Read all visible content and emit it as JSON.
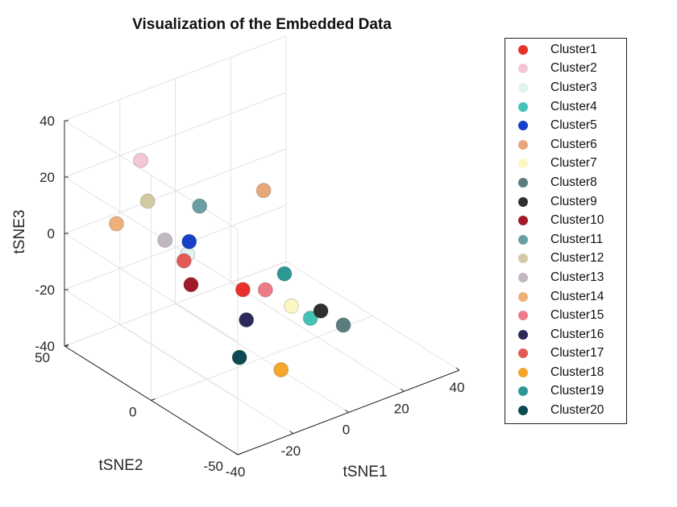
{
  "chart_data": {
    "type": "scatter3d",
    "title": "Visualization of the Embedded Data",
    "xlabel": "tSNE1",
    "ylabel": "tSNE2",
    "zlabel": "tSNE3",
    "xlim": [
      -40,
      40
    ],
    "ylim": [
      -50,
      50
    ],
    "zlim": [
      -40,
      40
    ],
    "xticks": [
      "-40",
      "-20",
      "0",
      "20",
      "40"
    ],
    "yticks": [
      "-50",
      "0",
      "50"
    ],
    "zticks": [
      "-40",
      "-20",
      "0",
      "20",
      "40"
    ],
    "grid": true,
    "legend_position": "outside-right",
    "series": [
      {
        "name": "Cluster1",
        "color": "#e8312c",
        "x": -10,
        "y": -5,
        "z": -10
      },
      {
        "name": "Cluster2",
        "color": "#f2c7d3",
        "x": -25,
        "y": 30,
        "z": 28
      },
      {
        "name": "Cluster3",
        "color": "#dff3ef",
        "x": -30,
        "y": -5,
        "z": 10
      },
      {
        "name": "Cluster4",
        "color": "#45c2b8",
        "x": 5,
        "y": -20,
        "z": -20
      },
      {
        "name": "Cluster5",
        "color": "#1540c7",
        "x": -20,
        "y": 10,
        "z": 5
      },
      {
        "name": "Cluster6",
        "color": "#e6a87a",
        "x": 10,
        "y": 15,
        "z": 10
      },
      {
        "name": "Cluster7",
        "color": "#fbf6c4",
        "x": -5,
        "y": -25,
        "z": -10
      },
      {
        "name": "Cluster8",
        "color": "#5a7c7f",
        "x": 20,
        "y": -15,
        "z": -30
      },
      {
        "name": "Cluster9",
        "color": "#2f2f2f",
        "x": 15,
        "y": -10,
        "z": -25
      },
      {
        "name": "Cluster10",
        "color": "#a01a28",
        "x": -35,
        "y": -15,
        "z": 5
      },
      {
        "name": "Cluster11",
        "color": "#6a9ea3",
        "x": -10,
        "y": 20,
        "z": 10
      },
      {
        "name": "Cluster12",
        "color": "#d3c9a2",
        "x": -35,
        "y": 10,
        "z": 25
      },
      {
        "name": "Cluster13",
        "color": "#c1b8c1",
        "x": -35,
        "y": 0,
        "z": 15
      },
      {
        "name": "Cluster14",
        "color": "#eeb07a",
        "x": -40,
        "y": 20,
        "z": 15
      },
      {
        "name": "Cluster15",
        "color": "#ee7a88",
        "x": -5,
        "y": -10,
        "z": -10
      },
      {
        "name": "Cluster16",
        "color": "#2c2a5a",
        "x": -15,
        "y": -15,
        "z": -15
      },
      {
        "name": "Cluster17",
        "color": "#e25a53",
        "x": -25,
        "y": 5,
        "z": 2
      },
      {
        "name": "Cluster18",
        "color": "#f5a52a",
        "x": -15,
        "y": -35,
        "z": -25
      },
      {
        "name": "Cluster19",
        "color": "#2d9893",
        "x": 5,
        "y": -5,
        "z": -10
      },
      {
        "name": "Cluster20",
        "color": "#0b4a52",
        "x": -30,
        "y": -35,
        "z": -15
      }
    ]
  }
}
